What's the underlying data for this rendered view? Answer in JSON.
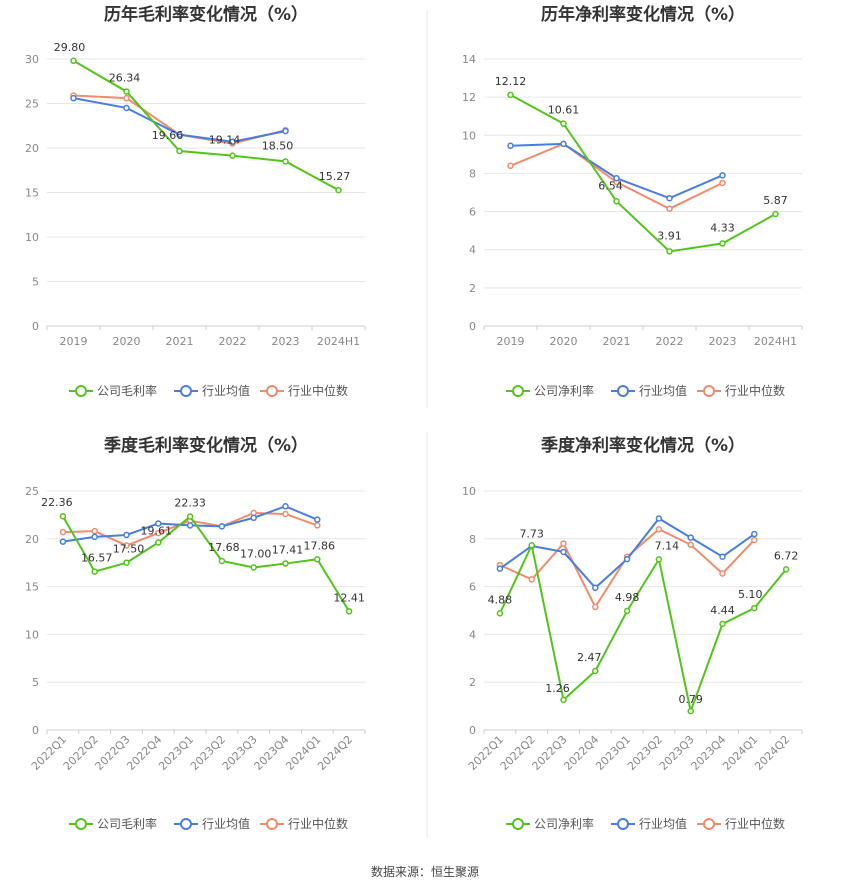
{
  "source_label": "数据来源：恒生聚源",
  "colors": {
    "company": "#52c41a",
    "avg": "#4a7de0",
    "median": "#f08c6c",
    "grid": "#e6e6e6",
    "divider": "#e8e8e8"
  },
  "chart_data": [
    {
      "type": "line",
      "title": "历年毛利率变化情况（%）",
      "categories": [
        "2019",
        "2020",
        "2021",
        "2022",
        "2023",
        "2024H1"
      ],
      "ylim": [
        0,
        30
      ],
      "yticks": [
        0,
        5,
        10,
        15,
        20,
        25,
        30
      ],
      "rotate_x": false,
      "series": [
        {
          "name": "公司毛利率",
          "color": "#52c41a",
          "labeled": true,
          "values": [
            29.8,
            26.34,
            19.66,
            19.14,
            18.5,
            15.27
          ],
          "labels": [
            "29.80",
            "26.34",
            "19.66",
            "19.14",
            "18.50",
            "15.27"
          ]
        },
        {
          "name": "行业均值",
          "color": "#4a7de0",
          "labeled": false,
          "values": [
            25.6,
            24.5,
            21.5,
            20.7,
            21.9,
            null
          ]
        },
        {
          "name": "行业中位数",
          "color": "#f08c6c",
          "labeled": false,
          "values": [
            25.9,
            25.6,
            21.5,
            20.5,
            22.0,
            null
          ]
        }
      ]
    },
    {
      "type": "line",
      "title": "历年净利率变化情况（%）",
      "categories": [
        "2019",
        "2020",
        "2021",
        "2022",
        "2023",
        "2024H1"
      ],
      "ylim": [
        0,
        14
      ],
      "yticks": [
        0,
        2,
        4,
        6,
        8,
        10,
        12,
        14
      ],
      "rotate_x": false,
      "series": [
        {
          "name": "公司净利率",
          "color": "#52c41a",
          "labeled": true,
          "values": [
            12.12,
            10.61,
            6.54,
            3.91,
            4.33,
            5.87
          ],
          "labels": [
            "12.12",
            "10.61",
            "6.54",
            "3.91",
            "4.33",
            "5.87"
          ]
        },
        {
          "name": "行业均值",
          "color": "#4a7de0",
          "labeled": false,
          "values": [
            9.45,
            9.55,
            7.75,
            6.7,
            7.9,
            null
          ]
        },
        {
          "name": "行业中位数",
          "color": "#f08c6c",
          "labeled": false,
          "values": [
            8.4,
            9.55,
            7.55,
            6.15,
            7.5,
            null
          ]
        }
      ]
    },
    {
      "type": "line",
      "title": "季度毛利率变化情况（%）",
      "categories": [
        "2022Q1",
        "2022Q2",
        "2022Q3",
        "2022Q4",
        "2023Q1",
        "2023Q2",
        "2023Q3",
        "2023Q4",
        "2024Q1",
        "2024Q2"
      ],
      "ylim": [
        0,
        25
      ],
      "yticks": [
        0,
        5,
        10,
        15,
        20,
        25
      ],
      "rotate_x": true,
      "series": [
        {
          "name": "公司毛利率",
          "color": "#52c41a",
          "labeled": true,
          "values": [
            22.36,
            16.57,
            17.5,
            19.61,
            22.33,
            17.68,
            17.0,
            17.41,
            17.86,
            12.41
          ],
          "labels": [
            "22.36",
            "16.57",
            "17.50",
            "19.61",
            "22.33",
            "17.68",
            "17.00",
            "17.41",
            "17.86",
            "12.41"
          ]
        },
        {
          "name": "行业均值",
          "color": "#4a7de0",
          "labeled": false,
          "values": [
            19.7,
            20.2,
            20.4,
            21.6,
            21.4,
            21.3,
            22.2,
            23.4,
            22.0,
            null
          ]
        },
        {
          "name": "行业中位数",
          "color": "#f08c6c",
          "labeled": false,
          "values": [
            20.7,
            20.8,
            19.3,
            20.6,
            21.9,
            21.3,
            22.7,
            22.6,
            21.4,
            null
          ]
        }
      ]
    },
    {
      "type": "line",
      "title": "季度净利率变化情况（%）",
      "categories": [
        "2022Q1",
        "2022Q2",
        "2022Q3",
        "2022Q4",
        "2023Q1",
        "2023Q2",
        "2023Q3",
        "2023Q4",
        "2024Q1",
        "2024Q2"
      ],
      "ylim": [
        0,
        10
      ],
      "yticks": [
        0,
        2,
        4,
        6,
        8,
        10
      ],
      "rotate_x": true,
      "series": [
        {
          "name": "公司净利率",
          "color": "#52c41a",
          "labeled": true,
          "values": [
            4.88,
            7.73,
            1.26,
            2.47,
            4.98,
            7.14,
            0.79,
            4.44,
            5.1,
            6.72
          ],
          "labels": [
            "4.88",
            "7.73",
            "1.26",
            "2.47",
            "4.98",
            "7.14",
            "0.79",
            "4.44",
            "5.10",
            "6.72"
          ]
        },
        {
          "name": "行业均值",
          "color": "#4a7de0",
          "labeled": false,
          "values": [
            6.75,
            7.7,
            7.45,
            5.95,
            7.15,
            8.85,
            8.05,
            7.25,
            8.2,
            null
          ]
        },
        {
          "name": "行业中位数",
          "color": "#f08c6c",
          "labeled": false,
          "values": [
            6.9,
            6.3,
            7.8,
            5.15,
            7.25,
            8.4,
            7.75,
            6.55,
            7.95,
            null
          ]
        }
      ]
    }
  ]
}
